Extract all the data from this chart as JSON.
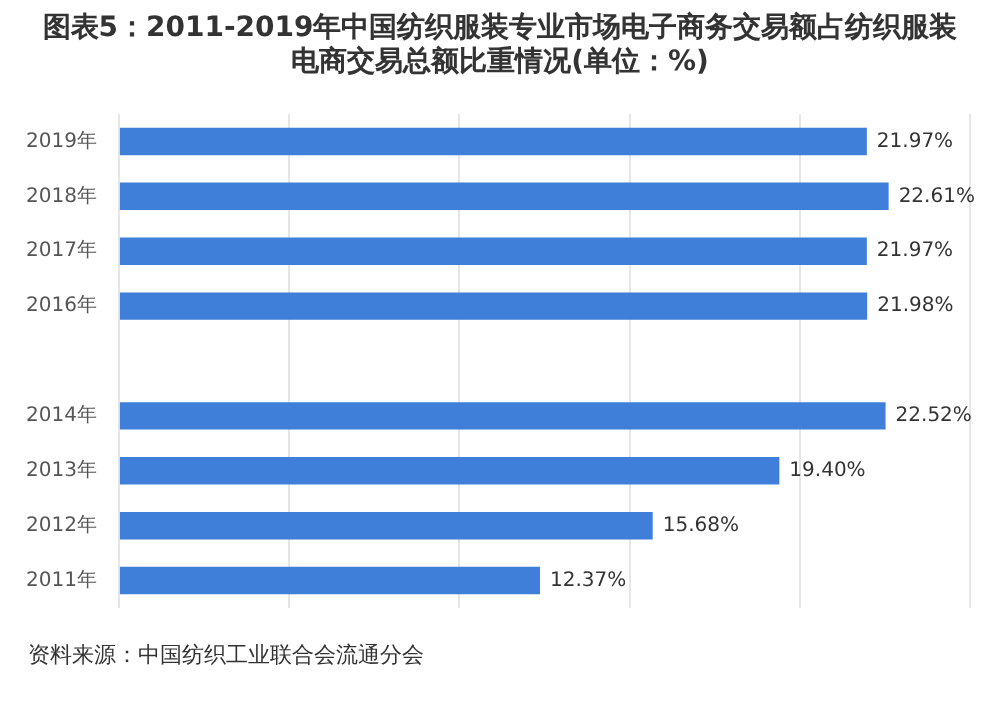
{
  "chart_data": {
    "type": "bar",
    "orientation": "horizontal",
    "title": "图表5：2011-2019年中国纺织服装专业市场电子商务交易额占纺织服装电商交易总额比重情况(单位：%)",
    "categories": [
      "2019年",
      "2018年",
      "2017年",
      "2016年",
      null,
      "2014年",
      "2013年",
      "2012年",
      "2011年"
    ],
    "values": [
      21.97,
      22.61,
      21.97,
      21.98,
      null,
      22.52,
      19.4,
      15.68,
      12.37
    ],
    "value_labels": [
      "21.97%",
      "22.61%",
      "21.97%",
      "21.98%",
      null,
      "22.52%",
      "19.40%",
      "15.68%",
      "12.37%"
    ],
    "color": "#3f7fd9",
    "xlim": [
      0,
      25
    ],
    "xticks": [
      {
        "value": 0,
        "label": null
      },
      {
        "value": 5,
        "label": null
      },
      {
        "value": 10,
        "label": null
      },
      {
        "value": 15,
        "label": null
      },
      {
        "value": 20,
        "label": null
      },
      {
        "value": 25,
        "label": null
      }
    ],
    "grid": "x",
    "tick_labels": "y",
    "annotations": [
      "资料来源：中国纺织工业联合会流通分会"
    ]
  }
}
